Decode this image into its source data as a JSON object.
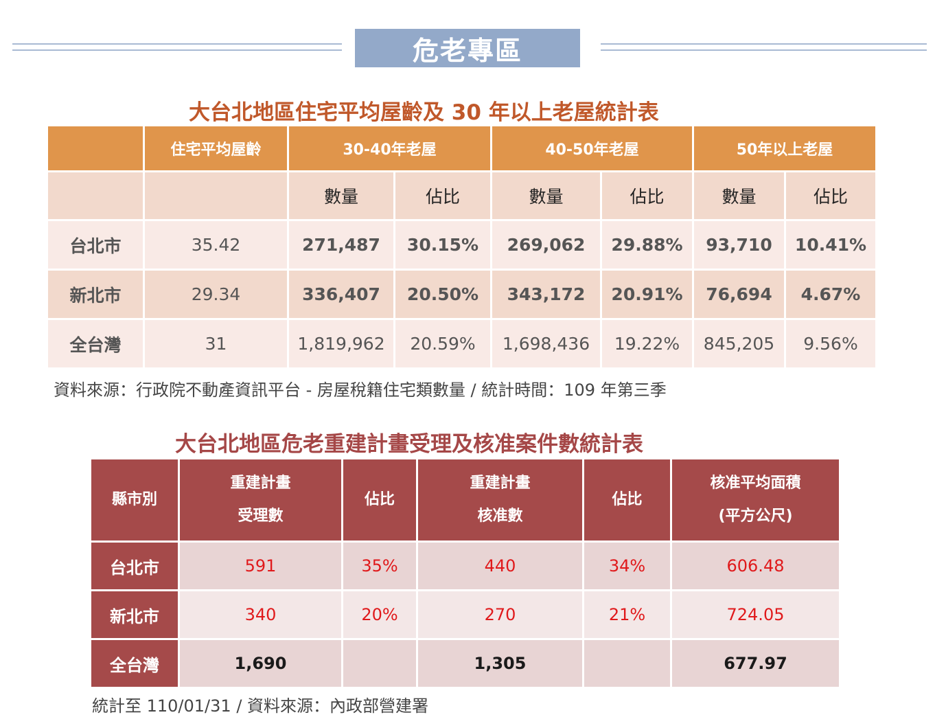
{
  "banner": {
    "title": "危老專區"
  },
  "table1": {
    "title": "大台北地區住宅平均屋齡及 30 年以上老屋統計表",
    "header": {
      "avg_age": "住宅平均屋齡",
      "g1": "30-40年老屋",
      "g2": "40-50年老屋",
      "g3": "50年以上老屋"
    },
    "subheader": {
      "count": "數量",
      "ratio": "佔比"
    },
    "rows": [
      {
        "label": "台北市",
        "avg": "35.42",
        "c1": "271,487",
        "r1": "30.15%",
        "c2": "269,062",
        "r2": "29.88%",
        "c3": "93,710",
        "r3": "10.41%"
      },
      {
        "label": "新北市",
        "avg": "29.34",
        "c1": "336,407",
        "r1": "20.50%",
        "c2": "343,172",
        "r2": "20.91%",
        "c3": "76,694",
        "r3": "4.67%"
      },
      {
        "label": "全台灣",
        "avg": "31",
        "c1": "1,819,962",
        "r1": "20.59%",
        "c2": "1,698,436",
        "r2": "19.22%",
        "c3": "845,205",
        "r3": "9.56%"
      }
    ],
    "source": "資料來源：行政院不動產資訊平台 - 房屋稅籍住宅類數量  /  統計時間：109 年第三季"
  },
  "table2": {
    "title": "大台北地區危老重建計畫受理及核准案件數統計表",
    "header": {
      "county": "縣市別",
      "accept_line1": "重建計畫",
      "accept_line2": "受理數",
      "ratio1": "佔比",
      "approve_line1": "重建計畫",
      "approve_line2": "核准數",
      "ratio2": "佔比",
      "area_line1": "核准平均面積",
      "area_line2": "(平方公尺)"
    },
    "rows": [
      {
        "label": "台北市",
        "accept": "591",
        "ratio1": "35%",
        "approve": "440",
        "ratio2": "34%",
        "area": "606.48"
      },
      {
        "label": "新北市",
        "accept": "340",
        "ratio1": "20%",
        "approve": "270",
        "ratio2": "21%",
        "area": "724.05"
      },
      {
        "label": "全台灣",
        "accept": "1,690",
        "ratio1": "",
        "approve": "1,305",
        "ratio2": "",
        "area": "677.97"
      }
    ],
    "source": "統計至 110/01/31  /  資料來源：內政部營建署"
  },
  "colors": {
    "banner": "#93a9c9",
    "table1_header": "#e0954b",
    "table1_title": "#c0582a",
    "table2_header": "#a54a4a",
    "table2_value": "#e0191b"
  }
}
